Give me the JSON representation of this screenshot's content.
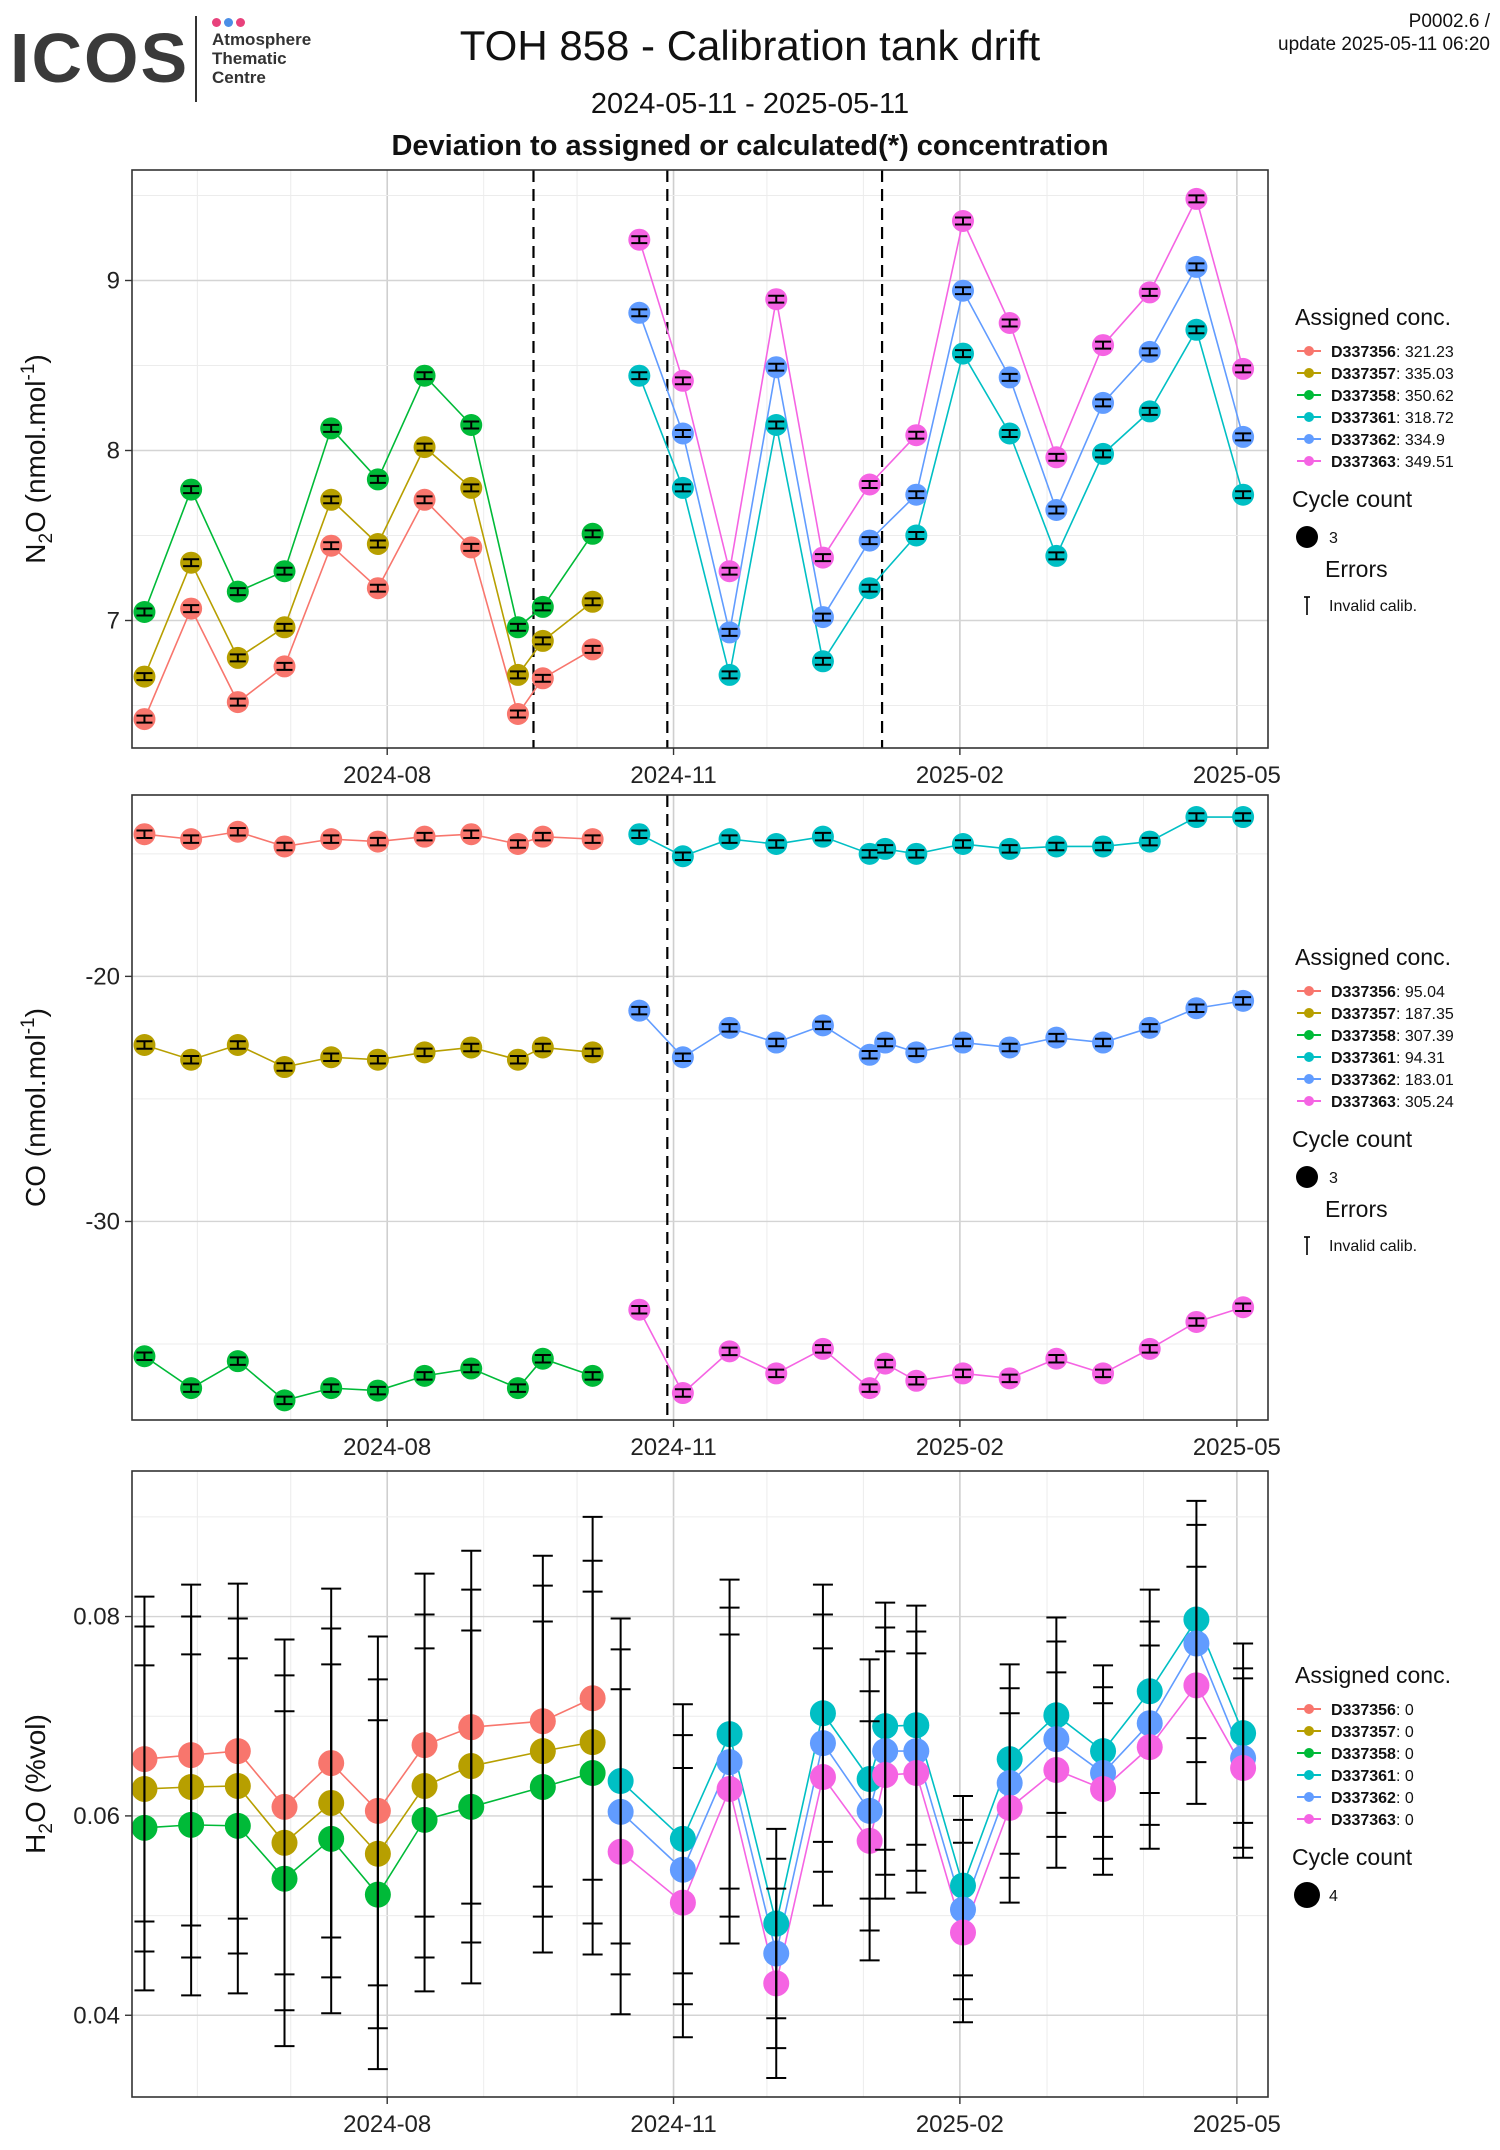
{
  "header": {
    "logo_text": "ICOS",
    "logo_sub": [
      "Atmosphere",
      "Thematic",
      "Centre"
    ],
    "logo_dot_colors": [
      "#e8427c",
      "#4b8ee6",
      "#e8427c"
    ],
    "title": "TOH 858 - Calibration tank drift",
    "date_range": "2024-05-11 - 2025-05-11",
    "subtitle": "Deviation to assigned or calculated(*) concentration",
    "corner_line1": "P0002.6 /",
    "corner_line2": "update  2025-05-11 06:20"
  },
  "colors": {
    "D337356": "#F8766D",
    "D337357": "#B79F00",
    "D337358": "#00BA38",
    "D337361": "#00BFC4",
    "D337362": "#619CFF",
    "D337363": "#F564E3"
  },
  "chart_data": [
    {
      "type": "scatter",
      "name": "N2O",
      "ylabel": "N2O (nmol.mol-1)",
      "ylim": [
        6.25,
        9.65
      ],
      "yticks": [
        7,
        8,
        9
      ],
      "xlim": [
        "2024-05-11",
        "2025-05-11"
      ],
      "xticks": [
        "2024-08-01",
        "2024-11-01",
        "2025-02-01",
        "2025-05-01"
      ],
      "xtick_labels": [
        "2024-08",
        "2024-11",
        "2025-02",
        "2025-05"
      ],
      "vlines": [
        "2024-09-17",
        "2024-10-30",
        "2025-01-07"
      ],
      "legend": {
        "title": "Assigned conc.",
        "entries": [
          {
            "tank": "D337356",
            "value": "321.23"
          },
          {
            "tank": "D337357",
            "value": "335.03"
          },
          {
            "tank": "D337358",
            "value": "350.62"
          },
          {
            "tank": "D337361",
            "value": "318.72"
          },
          {
            "tank": "D337362",
            "value": "334.9"
          },
          {
            "tank": "D337363",
            "value": "349.51"
          }
        ],
        "cycle_title": "Cycle count",
        "cycle_value": "3",
        "errors_title": "Errors",
        "errors_label": "Invalid calib."
      },
      "series": [
        {
          "name": "D337356",
          "x": [
            "2024-05-15",
            "2024-05-30",
            "2024-06-14",
            "2024-06-29",
            "2024-07-14",
            "2024-07-29",
            "2024-08-13",
            "2024-08-28",
            "2024-09-12",
            "2024-09-20",
            "2024-10-06"
          ],
          "y": [
            6.42,
            7.07,
            6.52,
            6.73,
            7.44,
            7.19,
            7.71,
            7.43,
            6.45,
            6.66,
            6.83
          ]
        },
        {
          "name": "D337357",
          "x": [
            "2024-05-15",
            "2024-05-30",
            "2024-06-14",
            "2024-06-29",
            "2024-07-14",
            "2024-07-29",
            "2024-08-13",
            "2024-08-28",
            "2024-09-12",
            "2024-09-20",
            "2024-10-06"
          ],
          "y": [
            6.67,
            7.34,
            6.78,
            6.96,
            7.71,
            7.45,
            8.02,
            7.78,
            6.68,
            6.88,
            7.11
          ]
        },
        {
          "name": "D337358",
          "x": [
            "2024-05-15",
            "2024-05-30",
            "2024-06-14",
            "2024-06-29",
            "2024-07-14",
            "2024-07-29",
            "2024-08-13",
            "2024-08-28",
            "2024-09-12",
            "2024-09-20",
            "2024-10-06"
          ],
          "y": [
            7.05,
            7.77,
            7.17,
            7.29,
            8.13,
            7.83,
            8.44,
            8.15,
            6.96,
            7.08,
            7.51
          ]
        },
        {
          "name": "D337361",
          "x": [
            "2024-10-21",
            "2024-11-04",
            "2024-11-19",
            "2024-12-04",
            "2024-12-19",
            "2025-01-03",
            "2025-01-18",
            "2025-02-02",
            "2025-02-17",
            "2025-03-04",
            "2025-03-19",
            "2025-04-03",
            "2025-04-18",
            "2025-05-03"
          ],
          "y": [
            8.44,
            7.78,
            6.68,
            8.15,
            6.76,
            7.19,
            7.5,
            8.57,
            8.1,
            7.38,
            7.98,
            8.23,
            8.71,
            7.74
          ]
        },
        {
          "name": "D337362",
          "x": [
            "2024-10-21",
            "2024-11-04",
            "2024-11-19",
            "2024-12-04",
            "2024-12-19",
            "2025-01-03",
            "2025-01-18",
            "2025-02-02",
            "2025-02-17",
            "2025-03-04",
            "2025-03-19",
            "2025-04-03",
            "2025-04-18",
            "2025-05-03"
          ],
          "y": [
            8.81,
            8.1,
            6.93,
            8.49,
            7.02,
            7.47,
            7.74,
            8.94,
            8.43,
            7.65,
            8.28,
            8.58,
            9.08,
            8.08
          ]
        },
        {
          "name": "D337363",
          "x": [
            "2024-10-21",
            "2024-11-04",
            "2024-11-19",
            "2024-12-04",
            "2024-12-19",
            "2025-01-03",
            "2025-01-18",
            "2025-02-02",
            "2025-02-17",
            "2025-03-04",
            "2025-03-19",
            "2025-04-03",
            "2025-04-18",
            "2025-05-03"
          ],
          "y": [
            9.24,
            8.41,
            7.29,
            8.89,
            7.37,
            7.8,
            8.09,
            9.35,
            8.75,
            7.96,
            8.62,
            8.93,
            9.48,
            8.48
          ]
        }
      ]
    },
    {
      "type": "scatter",
      "name": "CO",
      "ylabel": "CO (nmol.mol-1)",
      "ylim": [
        -38.1,
        -12.6
      ],
      "yticks": [
        -20,
        -30
      ],
      "xlim": [
        "2024-05-11",
        "2025-05-11"
      ],
      "xticks": [
        "2024-08-01",
        "2024-11-01",
        "2025-02-01",
        "2025-05-01"
      ],
      "xtick_labels": [
        "2024-08",
        "2024-11",
        "2025-02",
        "2025-05"
      ],
      "vlines": [
        "2024-10-30"
      ],
      "legend": {
        "title": "Assigned conc.",
        "entries": [
          {
            "tank": "D337356",
            "value": "95.04"
          },
          {
            "tank": "D337357",
            "value": "187.35"
          },
          {
            "tank": "D337358",
            "value": "307.39"
          },
          {
            "tank": "D337361",
            "value": "94.31"
          },
          {
            "tank": "D337362",
            "value": "183.01"
          },
          {
            "tank": "D337363",
            "value": "305.24"
          }
        ],
        "cycle_title": "Cycle count",
        "cycle_value": "3",
        "errors_title": "Errors",
        "errors_label": "Invalid calib."
      },
      "series": [
        {
          "name": "D337356",
          "x": [
            "2024-05-15",
            "2024-05-30",
            "2024-06-14",
            "2024-06-29",
            "2024-07-14",
            "2024-07-29",
            "2024-08-13",
            "2024-08-28",
            "2024-09-12",
            "2024-09-20",
            "2024-10-06"
          ],
          "y": [
            -14.2,
            -14.4,
            -14.1,
            -14.7,
            -14.4,
            -14.5,
            -14.3,
            -14.2,
            -14.6,
            -14.3,
            -14.4
          ]
        },
        {
          "name": "D337357",
          "x": [
            "2024-05-15",
            "2024-05-30",
            "2024-06-14",
            "2024-06-29",
            "2024-07-14",
            "2024-07-29",
            "2024-08-13",
            "2024-08-28",
            "2024-09-12",
            "2024-09-20",
            "2024-10-06"
          ],
          "y": [
            -22.8,
            -23.4,
            -22.8,
            -23.7,
            -23.3,
            -23.4,
            -23.1,
            -22.9,
            -23.4,
            -22.9,
            -23.1
          ]
        },
        {
          "name": "D337358",
          "x": [
            "2024-05-15",
            "2024-05-30",
            "2024-06-14",
            "2024-06-29",
            "2024-07-14",
            "2024-07-29",
            "2024-08-13",
            "2024-08-28",
            "2024-09-12",
            "2024-09-20",
            "2024-10-06"
          ],
          "y": [
            -35.5,
            -36.8,
            -35.7,
            -37.3,
            -36.8,
            -36.9,
            -36.3,
            -36.0,
            -36.8,
            -35.6,
            -36.3
          ]
        },
        {
          "name": "D337361",
          "x": [
            "2024-10-21",
            "2024-11-04",
            "2024-11-19",
            "2024-12-04",
            "2024-12-19",
            "2025-01-03",
            "2025-01-08",
            "2025-01-18",
            "2025-02-02",
            "2025-02-17",
            "2025-03-04",
            "2025-03-19",
            "2025-04-03",
            "2025-04-18",
            "2025-05-03"
          ],
          "y": [
            -14.2,
            -15.1,
            -14.4,
            -14.6,
            -14.3,
            -15.0,
            -14.8,
            -15.0,
            -14.6,
            -14.8,
            -14.7,
            -14.7,
            -14.5,
            -13.5,
            -13.5
          ]
        },
        {
          "name": "D337362",
          "x": [
            "2024-10-21",
            "2024-11-04",
            "2024-11-19",
            "2024-12-04",
            "2024-12-19",
            "2025-01-03",
            "2025-01-08",
            "2025-01-18",
            "2025-02-02",
            "2025-02-17",
            "2025-03-04",
            "2025-03-19",
            "2025-04-03",
            "2025-04-18",
            "2025-05-03"
          ],
          "y": [
            -21.4,
            -23.3,
            -22.1,
            -22.7,
            -22.0,
            -23.2,
            -22.7,
            -23.1,
            -22.7,
            -22.9,
            -22.5,
            -22.7,
            -22.1,
            -21.3,
            -21.0
          ]
        },
        {
          "name": "D337363",
          "x": [
            "2024-10-21",
            "2024-11-04",
            "2024-11-19",
            "2024-12-04",
            "2024-12-19",
            "2025-01-03",
            "2025-01-08",
            "2025-01-18",
            "2025-02-02",
            "2025-02-17",
            "2025-03-04",
            "2025-03-19",
            "2025-04-03",
            "2025-04-18",
            "2025-05-03"
          ],
          "y": [
            -33.6,
            -37.0,
            -35.3,
            -36.2,
            -35.2,
            -36.8,
            -35.8,
            -36.5,
            -36.2,
            -36.4,
            -35.6,
            -36.2,
            -35.2,
            -34.1,
            -33.5
          ]
        }
      ]
    },
    {
      "type": "scatter",
      "name": "H2O",
      "ylabel": "H2O (%vol)",
      "ylim": [
        0.0318,
        0.0946
      ],
      "yticks": [
        0.04,
        0.06,
        0.08
      ],
      "ytick_labels": [
        "0.04",
        "0.06",
        "0.08"
      ],
      "xlim": [
        "2024-05-11",
        "2025-05-11"
      ],
      "xticks": [
        "2024-08-01",
        "2024-11-01",
        "2025-02-01",
        "2025-05-01"
      ],
      "xtick_labels": [
        "2024-08",
        "2024-11",
        "2025-02",
        "2025-05"
      ],
      "vlines": [],
      "legend": {
        "title": "Assigned conc.",
        "entries": [
          {
            "tank": "D337356",
            "value": "0"
          },
          {
            "tank": "D337357",
            "value": "0"
          },
          {
            "tank": "D337358",
            "value": "0"
          },
          {
            "tank": "D337361",
            "value": "0"
          },
          {
            "tank": "D337362",
            "value": "0"
          },
          {
            "tank": "D337363",
            "value": "0"
          }
        ],
        "cycle_title": "Cycle count",
        "cycle_value": "4"
      },
      "series": [
        {
          "name": "D337356",
          "x": [
            "2024-05-15",
            "2024-05-30",
            "2024-06-14",
            "2024-06-29",
            "2024-07-14",
            "2024-07-29",
            "2024-08-13",
            "2024-08-28",
            "2024-09-20",
            "2024-10-06"
          ],
          "y": [
            0.0657,
            0.0661,
            0.0665,
            0.0609,
            0.0653,
            0.0605,
            0.0671,
            0.0689,
            0.0695,
            0.0718
          ],
          "err": [
            0.0163,
            0.0171,
            0.0168,
            0.0168,
            0.0175,
            0.0175,
            0.0172,
            0.0177,
            0.0166,
            0.0182
          ]
        },
        {
          "name": "D337357",
          "x": [
            "2024-05-15",
            "2024-05-30",
            "2024-06-14",
            "2024-06-29",
            "2024-07-14",
            "2024-07-29",
            "2024-08-13",
            "2024-08-28",
            "2024-09-20",
            "2024-10-06"
          ],
          "y": [
            0.0627,
            0.0629,
            0.063,
            0.0573,
            0.0613,
            0.0562,
            0.063,
            0.065,
            0.0665,
            0.0674
          ],
          "err": [
            0.0163,
            0.0171,
            0.0168,
            0.0168,
            0.0175,
            0.0175,
            0.0172,
            0.0177,
            0.0166,
            0.0182
          ]
        },
        {
          "name": "D337358",
          "x": [
            "2024-05-15",
            "2024-05-30",
            "2024-06-14",
            "2024-06-29",
            "2024-07-14",
            "2024-07-29",
            "2024-08-13",
            "2024-08-28",
            "2024-09-20",
            "2024-10-06"
          ],
          "y": [
            0.0588,
            0.0591,
            0.059,
            0.0537,
            0.0577,
            0.0521,
            0.0596,
            0.0609,
            0.0629,
            0.0643
          ],
          "err": [
            0.0163,
            0.0171,
            0.0168,
            0.0168,
            0.0175,
            0.0175,
            0.0172,
            0.0177,
            0.0166,
            0.0182
          ]
        },
        {
          "name": "D337361",
          "x": [
            "2024-10-15",
            "2024-11-04",
            "2024-11-19",
            "2024-12-04",
            "2024-12-19",
            "2025-01-03",
            "2025-01-08",
            "2025-01-18",
            "2025-02-02",
            "2025-02-17",
            "2025-03-04",
            "2025-03-19",
            "2025-04-03",
            "2025-04-18",
            "2025-05-03"
          ],
          "y": [
            0.0635,
            0.0577,
            0.0682,
            0.0492,
            0.0703,
            0.0637,
            0.069,
            0.0691,
            0.053,
            0.0657,
            0.0701,
            0.0665,
            0.0725,
            0.0797,
            0.0683
          ],
          "err": [
            0.0163,
            0.0135,
            0.0155,
            0.0095,
            0.0129,
            0.012,
            0.0124,
            0.012,
            0.009,
            0.0095,
            0.0098,
            0.0086,
            0.0102,
            0.0119,
            0.009
          ]
        },
        {
          "name": "D337362",
          "x": [
            "2024-10-15",
            "2024-11-04",
            "2024-11-19",
            "2024-12-04",
            "2024-12-19",
            "2025-01-03",
            "2025-01-08",
            "2025-01-18",
            "2025-02-02",
            "2025-02-17",
            "2025-03-04",
            "2025-03-19",
            "2025-04-03",
            "2025-04-18",
            "2025-05-03"
          ],
          "y": [
            0.0604,
            0.0546,
            0.0654,
            0.0462,
            0.0673,
            0.0605,
            0.0665,
            0.0665,
            0.0506,
            0.0633,
            0.0677,
            0.0643,
            0.0693,
            0.0773,
            0.0658
          ],
          "err": [
            0.0163,
            0.0135,
            0.0155,
            0.0095,
            0.0129,
            0.012,
            0.0124,
            0.012,
            0.009,
            0.0095,
            0.0098,
            0.0086,
            0.0102,
            0.0119,
            0.009
          ]
        },
        {
          "name": "D337363",
          "x": [
            "2024-10-15",
            "2024-11-04",
            "2024-11-19",
            "2024-12-04",
            "2024-12-19",
            "2025-01-03",
            "2025-01-08",
            "2025-01-18",
            "2025-02-02",
            "2025-02-17",
            "2025-03-04",
            "2025-03-19",
            "2025-04-03",
            "2025-04-18",
            "2025-05-03"
          ],
          "y": [
            0.0564,
            0.0513,
            0.0627,
            0.0432,
            0.0639,
            0.0575,
            0.0641,
            0.0643,
            0.0483,
            0.0608,
            0.0646,
            0.0627,
            0.0669,
            0.0731,
            0.0648
          ],
          "err": [
            0.0163,
            0.0135,
            0.0155,
            0.0095,
            0.0129,
            0.012,
            0.0124,
            0.012,
            0.009,
            0.0095,
            0.0098,
            0.0086,
            0.0102,
            0.0119,
            0.009
          ]
        }
      ]
    }
  ]
}
